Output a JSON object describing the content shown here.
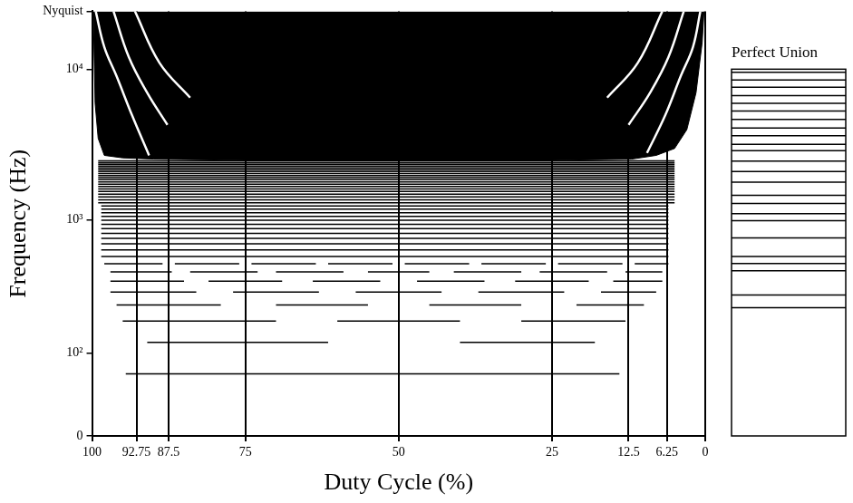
{
  "chart_data": [
    {
      "type": "line",
      "x_label": "Duty Cycle (%)",
      "y_label": "Frequency (Hz)",
      "xlim": [
        100,
        0
      ],
      "xticks": [
        100,
        92.75,
        87.5,
        75,
        50,
        25,
        12.5,
        6.25,
        0
      ],
      "ylim": [
        0,
        24000
      ],
      "yticks": [
        0,
        {
          "value": 100,
          "label": "10²"
        },
        {
          "value": 1000,
          "label": "10³"
        },
        {
          "value": 10000,
          "label": "10⁴"
        },
        {
          "value": 24000,
          "label": "Nyquist"
        }
      ],
      "log": "y",
      "grid": "x",
      "series": [
        {
          "type": "area",
          "color": "#000000",
          "x": [
            99.8,
            99.5,
            99,
            98,
            95,
            90,
            75,
            50,
            25,
            12,
            8,
            5,
            3,
            1.5,
            0.5,
            0.2
          ],
          "values": [
            24000,
            6000,
            3500,
            2700,
            2600,
            2550,
            2500,
            2500,
            2500,
            2550,
            2700,
            3000,
            4000,
            7000,
            15000,
            24000
          ]
        },
        {
          "type": "line",
          "color": "#ffffff",
          "x": [
            99.4,
            98,
            96,
            93.5,
            90.7
          ],
          "values": [
            24000,
            14000,
            9000,
            5000,
            2700
          ]
        },
        {
          "type": "line",
          "color": "#ffffff",
          "x": [
            96.5,
            94,
            91,
            87.7
          ],
          "values": [
            24000,
            12000,
            7000,
            4300
          ]
        },
        {
          "type": "line",
          "color": "#ffffff",
          "x": [
            93,
            89,
            84
          ],
          "values": [
            24000,
            11000,
            6500
          ]
        },
        {
          "type": "line",
          "color": "#ffffff",
          "x": [
            0.8,
            2,
            4,
            6.5,
            9.5
          ],
          "values": [
            24000,
            14000,
            9000,
            5000,
            2800
          ]
        },
        {
          "type": "line",
          "color": "#ffffff",
          "x": [
            3.5,
            6,
            9,
            12.5
          ],
          "values": [
            24000,
            12000,
            7000,
            4300
          ]
        },
        {
          "type": "line",
          "color": "#ffffff",
          "x": [
            7,
            11,
            16
          ],
          "values": [
            24000,
            11000,
            6500
          ]
        }
      ],
      "harmonics": {
        "color": "#000000",
        "lines": [
          {
            "frequency": 62,
            "segments": [
              [
                94.5,
                14
              ]
            ]
          },
          {
            "frequency": 124,
            "segments": [
              [
                91,
                61.5
              ],
              [
                40,
                18
              ]
            ]
          },
          {
            "frequency": 186,
            "segments": [
              [
                95,
                70
              ],
              [
                60,
                40
              ],
              [
                30,
                13
              ]
            ]
          },
          {
            "frequency": 248,
            "segments": [
              [
                96,
                79
              ],
              [
                70,
                55
              ],
              [
                45,
                30
              ],
              [
                21,
                10
              ]
            ]
          },
          {
            "frequency": 310,
            "segments": [
              [
                97,
                83
              ],
              [
                77,
                63
              ],
              [
                57,
                43
              ],
              [
                37,
                23
              ],
              [
                17,
                8
              ]
            ]
          },
          {
            "frequency": 372,
            "segments": [
              [
                97,
                85
              ],
              [
                81,
                69
              ],
              [
                64,
                53
              ],
              [
                47,
                36
              ],
              [
                31,
                19
              ],
              [
                15,
                7
              ]
            ]
          },
          {
            "frequency": 434,
            "segments": [
              [
                97,
                87
              ],
              [
                84,
                73
              ],
              [
                70,
                59
              ],
              [
                55,
                45
              ],
              [
                41,
                30
              ],
              [
                27,
                16
              ],
              [
                13,
                7
              ]
            ]
          },
          {
            "frequency": 496,
            "segments": [
              [
                98,
                88.5
              ],
              [
                86.5,
                76
              ],
              [
                74,
                63.5
              ],
              [
                61.5,
                51
              ],
              [
                49,
                38.5
              ],
              [
                36.5,
                26
              ],
              [
                24,
                13.5
              ],
              [
                11.5,
                6
              ]
            ]
          },
          {
            "frequency": 558,
            "segments": [
              [
                98.5,
                6
              ]
            ]
          },
          {
            "frequency": 620,
            "segments": [
              [
                98.5,
                6
              ]
            ]
          },
          {
            "frequency": 682,
            "segments": [
              [
                98.5,
                6
              ]
            ]
          },
          {
            "frequency": 744,
            "segments": [
              [
                98.5,
                6
              ]
            ]
          },
          {
            "frequency": 806,
            "segments": [
              [
                98.5,
                6
              ]
            ]
          },
          {
            "frequency": 868,
            "segments": [
              [
                98.5,
                6
              ]
            ]
          },
          {
            "frequency": 930,
            "segments": [
              [
                98.5,
                6
              ]
            ]
          },
          {
            "frequency": 992,
            "segments": [
              [
                98.5,
                6
              ]
            ]
          },
          {
            "frequency": 1054,
            "segments": [
              [
                98.5,
                6
              ]
            ]
          },
          {
            "frequency": 1116,
            "segments": [
              [
                98.5,
                6
              ]
            ]
          },
          {
            "frequency": 1178,
            "segments": [
              [
                98.5,
                6
              ]
            ]
          },
          {
            "frequency": 1240,
            "segments": [
              [
                98.5,
                6
              ]
            ]
          },
          {
            "frequency": 1302,
            "segments": [
              [
                99,
                5
              ]
            ]
          },
          {
            "frequency": 1364,
            "segments": [
              [
                99,
                5
              ]
            ]
          },
          {
            "frequency": 1426,
            "segments": [
              [
                99,
                5
              ]
            ]
          },
          {
            "frequency": 1488,
            "segments": [
              [
                99,
                5
              ]
            ]
          },
          {
            "frequency": 1550,
            "segments": [
              [
                99,
                5
              ]
            ]
          },
          {
            "frequency": 1612,
            "segments": [
              [
                99,
                5
              ]
            ]
          },
          {
            "frequency": 1674,
            "segments": [
              [
                99,
                5
              ]
            ]
          },
          {
            "frequency": 1736,
            "segments": [
              [
                99,
                5
              ]
            ]
          },
          {
            "frequency": 1798,
            "segments": [
              [
                99,
                5
              ]
            ]
          },
          {
            "frequency": 1860,
            "segments": [
              [
                99,
                5
              ]
            ]
          },
          {
            "frequency": 1922,
            "segments": [
              [
                99,
                5
              ]
            ]
          },
          {
            "frequency": 1984,
            "segments": [
              [
                99,
                5
              ]
            ]
          },
          {
            "frequency": 2046,
            "segments": [
              [
                99,
                5
              ]
            ]
          },
          {
            "frequency": 2108,
            "segments": [
              [
                99,
                5
              ]
            ]
          },
          {
            "frequency": 2170,
            "segments": [
              [
                99,
                5
              ]
            ]
          },
          {
            "frequency": 2232,
            "segments": [
              [
                99,
                5
              ]
            ]
          },
          {
            "frequency": 2294,
            "segments": [
              [
                99,
                5
              ]
            ]
          },
          {
            "frequency": 2356,
            "segments": [
              [
                99,
                5
              ]
            ]
          },
          {
            "frequency": 2418,
            "segments": [
              [
                99,
                5
              ]
            ]
          },
          {
            "frequency": 2480,
            "segments": [
              [
                99,
                5
              ]
            ]
          }
        ]
      }
    },
    {
      "type": "line",
      "title": "Perfect Union",
      "xlim": [
        100,
        0
      ],
      "ylim": [
        0,
        10000
      ],
      "log": "y",
      "tick_labels": false,
      "color": "#000000",
      "frequencies": [
        236,
        294,
        442,
        497,
        558,
        750,
        986,
        1100,
        1290,
        1460,
        1790,
        2110,
        2470,
        2900,
        3200,
        3650,
        4100,
        4670,
        5300,
        5970,
        6700,
        7600,
        8500,
        9540
      ]
    }
  ]
}
